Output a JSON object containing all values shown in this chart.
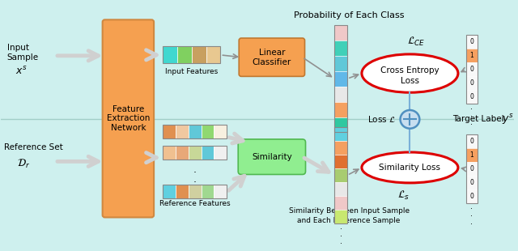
{
  "bg_color": "#cef0ee",
  "title": "Probability of Each Class",
  "feature_box_color": "#f5a050",
  "linear_box_color": "#f5a050",
  "similarity_box_color": "#90ee90",
  "loss_ellipse_color_edge": "#dd0000",
  "arrow_color": "#b0b0b0",
  "big_arrow_color": "#d0d0d0",
  "circle_plus_face": "#c8dff0",
  "circle_plus_edge": "#5090c0",
  "line_connect_color": "#7ab0d8",
  "input_feat_colors": [
    "#40d8d0",
    "#80d060",
    "#c8a060",
    "#e8c890"
  ],
  "ref_colors_1": [
    "#e09050",
    "#f0c8a0",
    "#60c8d8",
    "#90d870",
    "#f8f0e0"
  ],
  "ref_colors_2": [
    "#f0c090",
    "#e8a878",
    "#c8d898",
    "#60c8d8",
    "#f0f0f0"
  ],
  "ref_colors_3": [
    "#60d0e0",
    "#e09050",
    "#d0d0a0",
    "#a0d890",
    "#f0f0f0"
  ],
  "prob_colors": [
    "#f0c8c8",
    "#40d0b8",
    "#60c8d8",
    "#60b8e8",
    "#e8e8e8",
    "#f5a060",
    "#30c8a0"
  ],
  "sim_bar_colors": [
    "#60d0e0",
    "#f5a060",
    "#e07030",
    "#a8cc70",
    "#e8e8e8",
    "#f0c8c8",
    "#c8e870"
  ],
  "tl_top_colors": [
    "#f8f8f8",
    "#f5a060",
    "#f8f8f8",
    "#f8f8f8",
    "#f8f8f8"
  ],
  "tl_bot_colors": [
    "#f8f8f8",
    "#f5a060",
    "#f8f8f8",
    "#f8f8f8",
    "#f8f8f8"
  ],
  "tl_top_nums": [
    "0",
    "1",
    "0",
    "0",
    "0"
  ],
  "tl_bot_nums": [
    "0",
    "1",
    "0",
    "0",
    "0"
  ]
}
